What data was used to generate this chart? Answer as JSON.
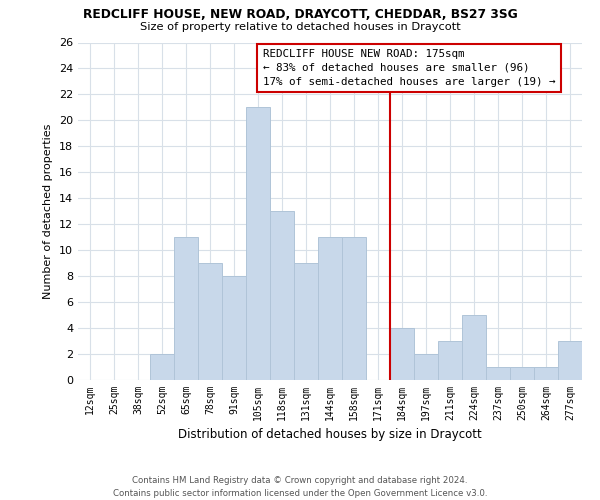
{
  "title": "REDCLIFF HOUSE, NEW ROAD, DRAYCOTT, CHEDDAR, BS27 3SG",
  "subtitle": "Size of property relative to detached houses in Draycott",
  "xlabel": "Distribution of detached houses by size in Draycott",
  "ylabel": "Number of detached properties",
  "bar_color": "#c8d8ea",
  "bar_edge_color": "#b0c4d8",
  "categories": [
    "12sqm",
    "25sqm",
    "38sqm",
    "52sqm",
    "65sqm",
    "78sqm",
    "91sqm",
    "105sqm",
    "118sqm",
    "131sqm",
    "144sqm",
    "158sqm",
    "171sqm",
    "184sqm",
    "197sqm",
    "211sqm",
    "224sqm",
    "237sqm",
    "250sqm",
    "264sqm",
    "277sqm"
  ],
  "values": [
    0,
    0,
    0,
    2,
    11,
    9,
    8,
    21,
    13,
    9,
    11,
    11,
    0,
    4,
    2,
    3,
    5,
    1,
    1,
    1,
    3
  ],
  "ylim": [
    0,
    26
  ],
  "yticks": [
    0,
    2,
    4,
    6,
    8,
    10,
    12,
    14,
    16,
    18,
    20,
    22,
    24,
    26
  ],
  "vline_index": 12,
  "vline_color": "#cc0000",
  "annotation_title": "REDCLIFF HOUSE NEW ROAD: 175sqm",
  "annotation_line1": "← 83% of detached houses are smaller (96)",
  "annotation_line2": "17% of semi-detached houses are larger (19) →",
  "annotation_box_color": "#ffffff",
  "annotation_box_edge": "#cc0000",
  "footer_line1": "Contains HM Land Registry data © Crown copyright and database right 2024.",
  "footer_line2": "Contains public sector information licensed under the Open Government Licence v3.0.",
  "grid_color": "#d8e0e8",
  "background_color": "#ffffff"
}
